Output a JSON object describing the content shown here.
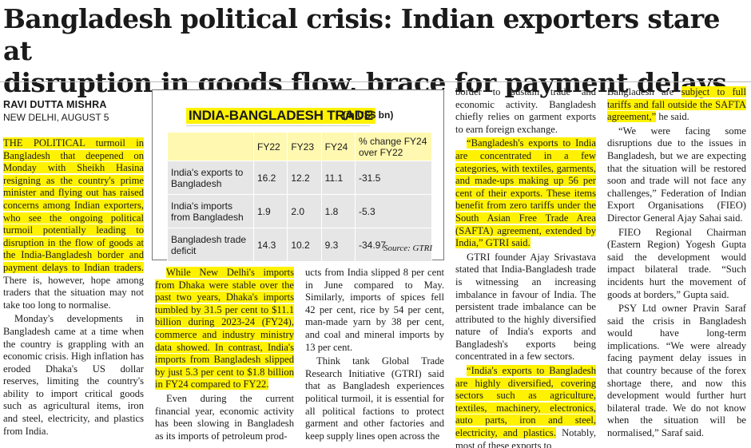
{
  "headline": {
    "line1": "Bangladesh political crisis: Indian exporters stare at",
    "line2": "disruption in goods flow, brace for payment delays"
  },
  "byline": {
    "author": "RAVI DUTTA MISHRA",
    "place_date": "NEW DELHI, AUGUST 5"
  },
  "col1": {
    "p1_hl": "THE POLITICAL turmoil in Bangladesh that deepened on Monday with Sheikh Hasina resigning as the country's prime minister and flying out has raised concerns among Indian exporters, who see the ongoing political turmoil potentially leading to disruption in the flow of goods at the India-Bangladesh border and payment delays to Indian traders.",
    "p1_rest": " There is, however, hope among traders that the situation may not take too long to normalise.",
    "p2": "Monday's developments in Bangladesh came at a time when the country is grappling with an economic crisis. High inflation has eroded Dhaka's US dollar reserves, limiting the country's ability to import critical goods such as agricultural items, iron and steel, electricity, and plastics from India."
  },
  "chart": {
    "title": "INDIA-BANGLADESH TRADE",
    "unit": "(in US$ bn)",
    "source": "Source: GTRI"
  },
  "chart_data": {
    "type": "table",
    "title": "INDIA-BANGLADESH TRADE",
    "unit": "(in US$ bn)",
    "columns": [
      "FY22",
      "FY23",
      "FY24",
      "% change FY24 over FY22"
    ],
    "rows": [
      {
        "label": "India's exports to Bangladesh",
        "values": [
          "16.2",
          "12.2",
          "11.1",
          "-31.5"
        ]
      },
      {
        "label": "India's imports from Bangladesh",
        "values": [
          "1.9",
          "2.0",
          "1.8",
          "-5.3"
        ]
      },
      {
        "label": "Bangladesh trade deficit",
        "values": [
          "14.3",
          "10.2",
          "9.3",
          "-34.97"
        ]
      }
    ],
    "source": "Source: GTRI"
  },
  "col2": {
    "p1_hl": "While New Delhi's imports from Dhaka were stable over the past two years, Dhaka's imports tumbled by 31.5 per cent to $11.1 billion during 2023-24 (FY24), commerce and industry ministry data showed. In contrast, India's imports from Bangladesh slipped by just 5.3 per cent to $1.8 billion in FY24 compared to FY22.",
    "p2": "Even during the current financial year, economic activity has been slowing in Bangladesh as its imports of petroleum prod-"
  },
  "col3": {
    "p1": "ucts from India slipped 8 per cent in June compared to May. Similarly, imports of spices fell 42 per cent, rice by 54 per cent, man-made yarn by 38 per cent, and coal and mineral imports by 13 per cent.",
    "p2": "Think tank Global Trade Research Initiative (GTRI) said that as Bangladesh experiences political turmoil, it is essential for all political factions to protect garment and other factories and keep supply lines open across the"
  },
  "col4": {
    "p1": "border to sustain trade and economic activity. Bangladesh chiefly relies on garment exports to earn foreign exchange.",
    "p2_hl": "“Bangladesh's exports to India are concentrated in a few categories, with textiles, garments, and made-ups making up 56 per cent of their exports. These items benefit from zero tariffs under the South Asian Free Trade Area (SAFTA) agreement, extended by India,” GTRI said.",
    "p3": "GTRI founder Ajay Srivastava stated that India-Bangladesh trade is witnessing an increasing imbalance in favour of India. The persistent trade imbalance can be attributed to the highly diversified nature of India's exports and Bangladesh's exports being concentrated in a few sectors.",
    "p4_hl": "“India's exports to Bangladesh are highly diversified, covering sectors such as agriculture, textiles, machinery, electronics, auto parts, iron and steel, electricity, and plastics.",
    "p4_rest": " Notably, most of these exports to"
  },
  "col5": {
    "p1_pre": "Bangladesh are ",
    "p1_hl": "subject to full tariffs and fall outside the SAFTA agreement,”",
    "p1_post": " he said.",
    "p2": "“We were facing some disruptions due to the issues in Bangladesh, but we are expecting that the situation will be restored soon and trade will not face any challenges,” Federation of Indian Export Organisations (FIEO) Director General Ajay Sahai said.",
    "p3": "FIEO Regional Chairman (Eastern Region) Yogesh Gupta said the development would impact bilateral trade. “Such incidents hurt the movement of goods at borders,” Gupta said.",
    "p4": "PSY Ltd owner Pravin Saraf said the crisis in Bangladesh would have long-term implications. “We were already facing payment delay issues in that country because of the forex shortage there, and now this development would further hurt bilateral trade. We do not know when the situation will be normalised,” Saraf said."
  },
  "colors": {
    "highlight": "#fff200",
    "table_header": "#fff8b0",
    "table_cell": "#e6e6e6"
  }
}
